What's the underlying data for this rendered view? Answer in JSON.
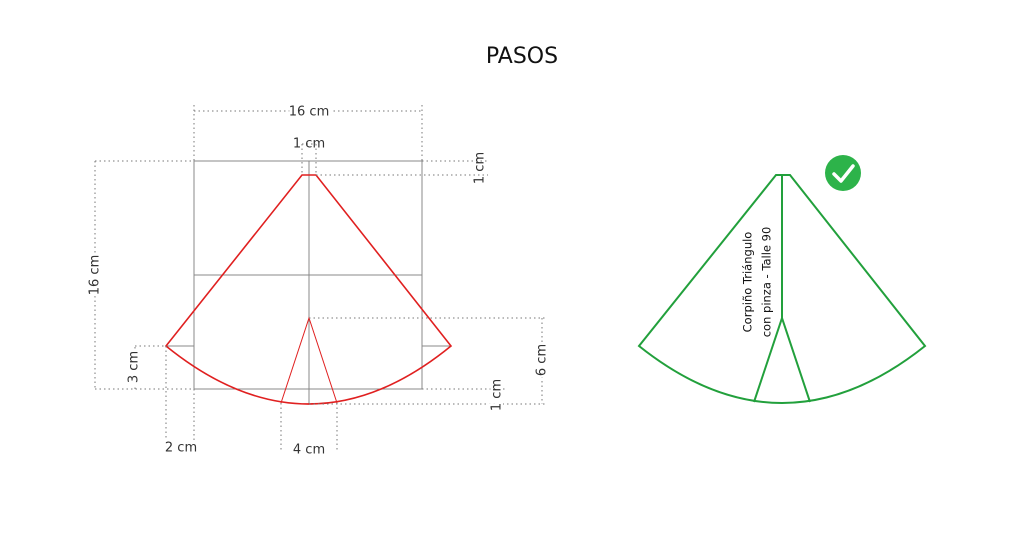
{
  "title": "PASOS",
  "pattern": {
    "labels": [
      "16 cm",
      "1 cm",
      "1 cm",
      "16 cm",
      "3 cm",
      "2 cm",
      "4 cm",
      "1 cm",
      "6 cm"
    ]
  },
  "piece": {
    "label_lines": [
      "Corpiño Triángulo",
      "con pinza - Talle 90"
    ]
  }
}
